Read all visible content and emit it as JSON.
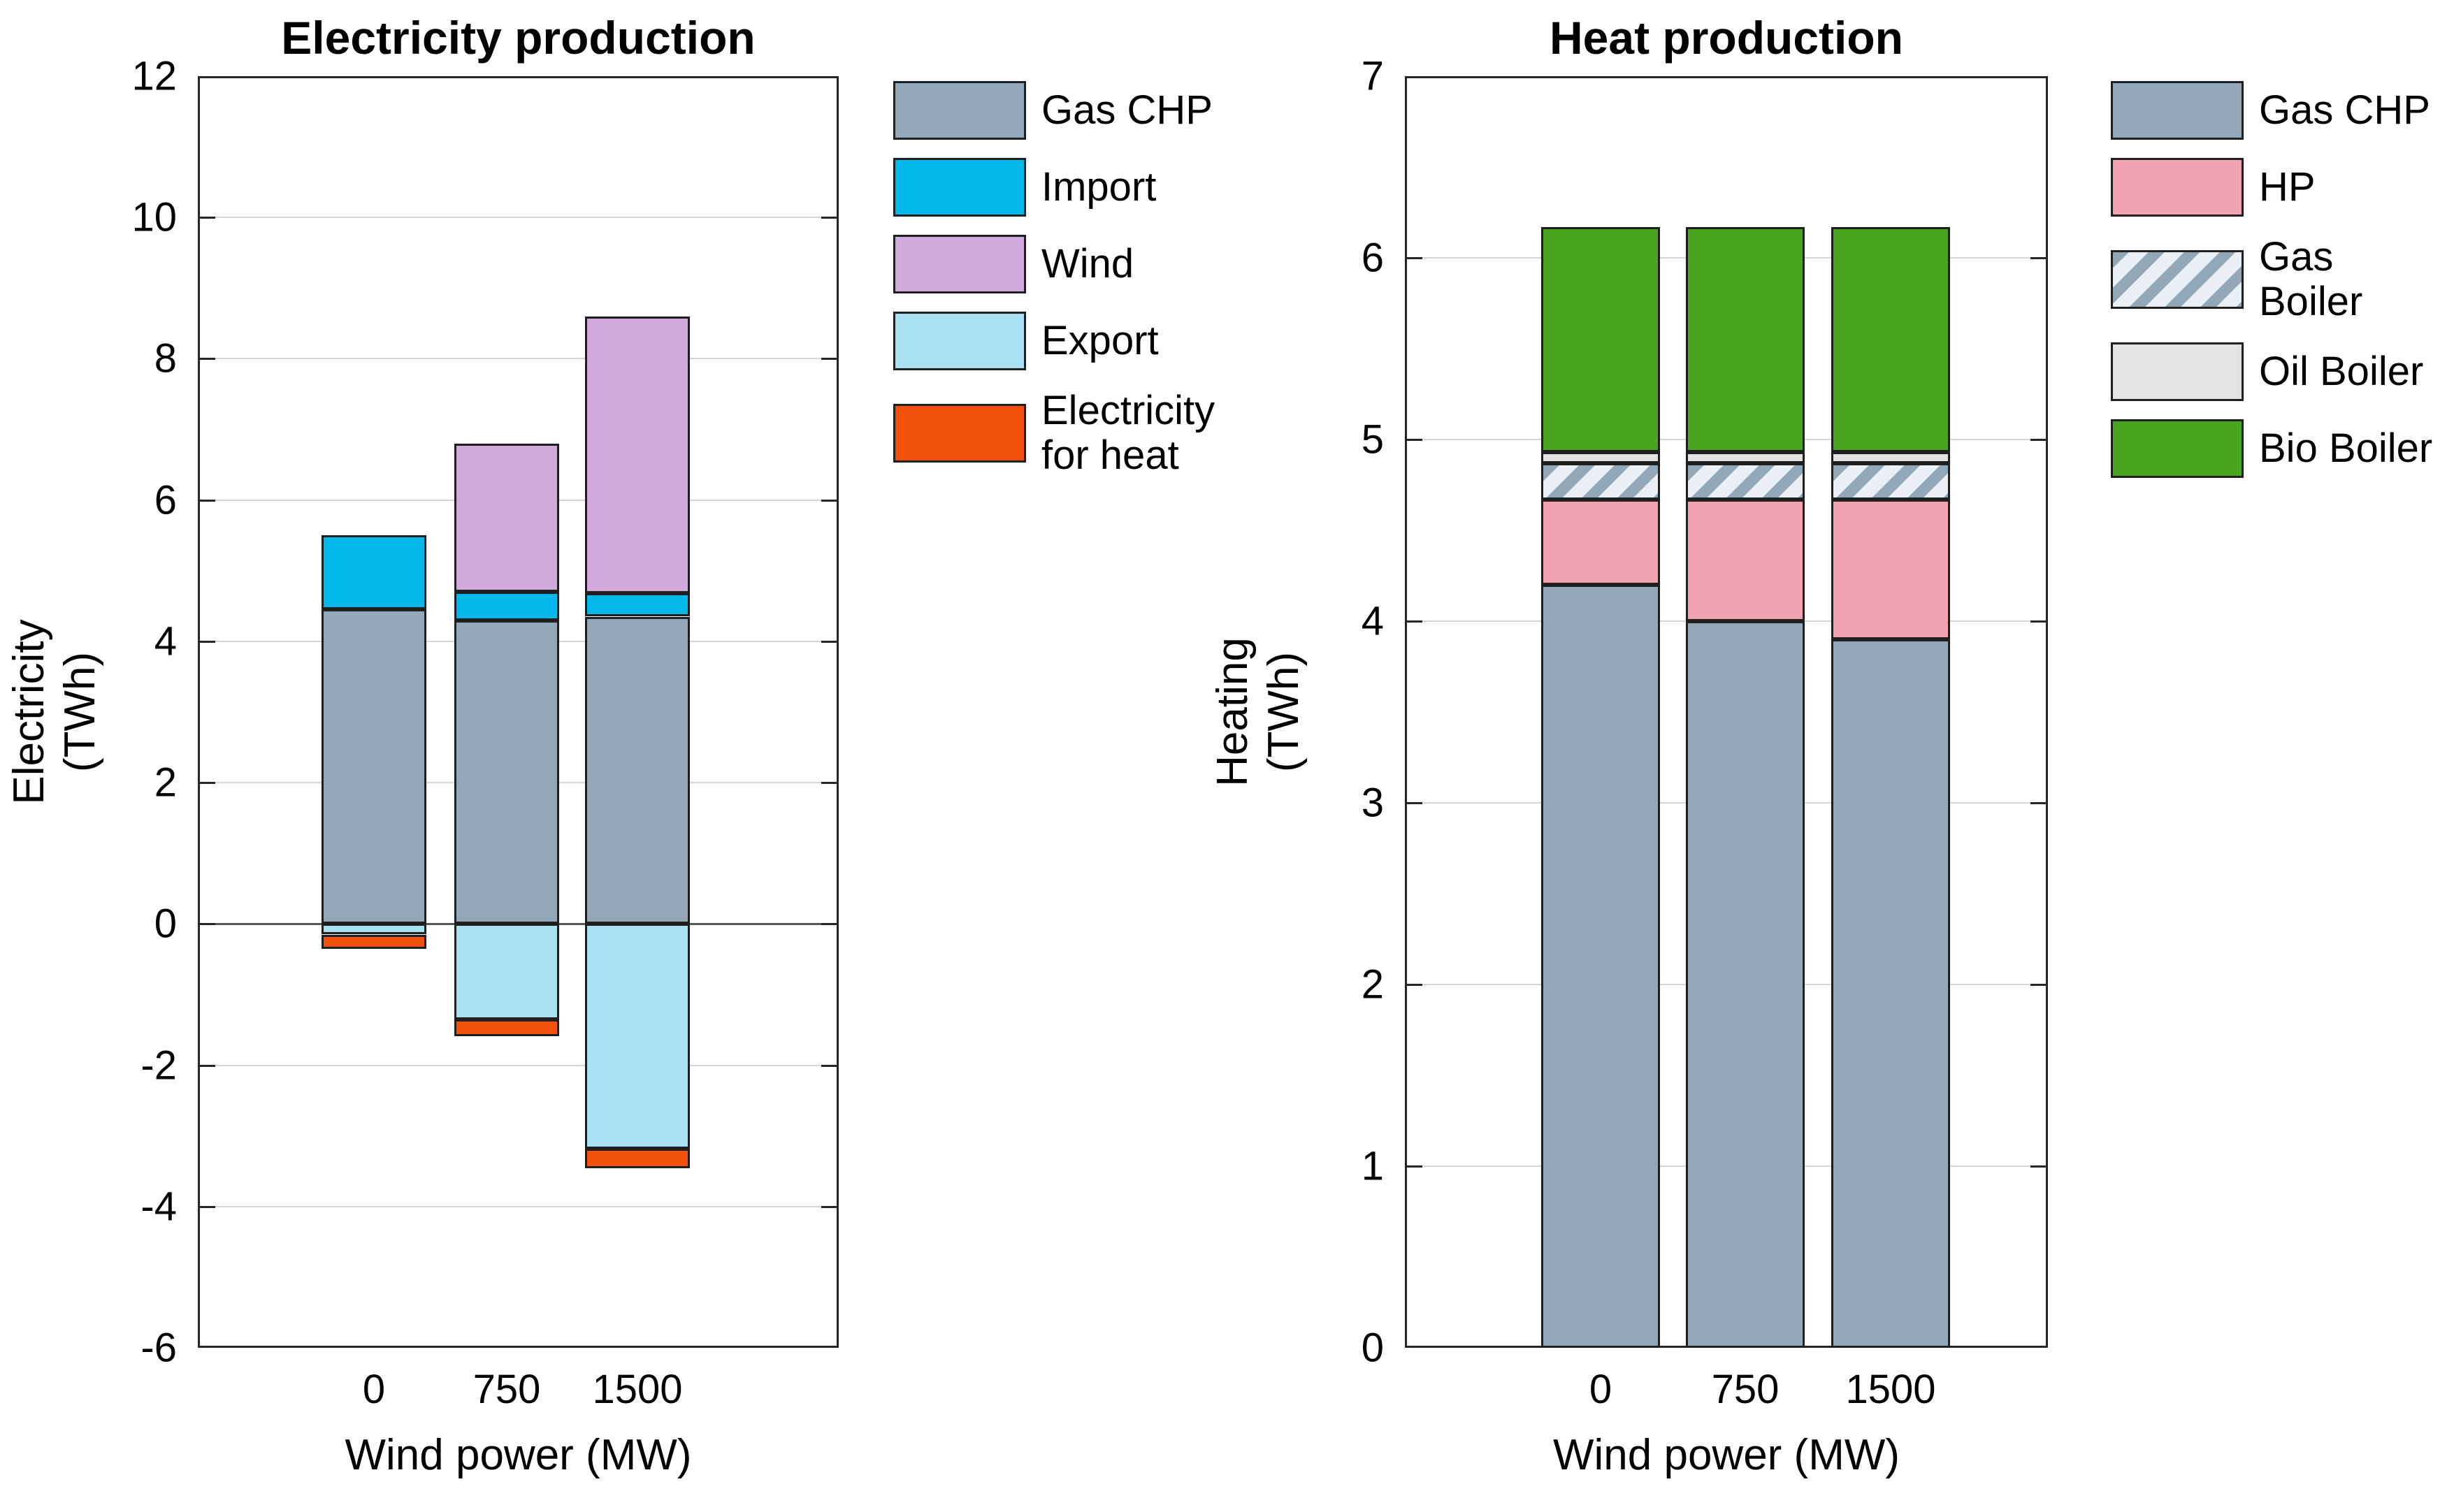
{
  "figure": {
    "background": "#ffffff",
    "grid_color": "#d6d6d6",
    "zero_line_color": "#595959",
    "bar_edge_color": "#1f1f1f",
    "hatch_light_color": "#e9eff4"
  },
  "chart_data": [
    {
      "type": "bar",
      "stacked": true,
      "title": "Electricity production",
      "ylabel": "Electricity (TWh)",
      "ylabel_lines": [
        "Electricity",
        "(TWh)"
      ],
      "xlabel": "Wind power (MW)",
      "categories": [
        "0",
        "750",
        "1500"
      ],
      "ylim": [
        -6,
        12
      ],
      "yticks": [
        -6,
        -4,
        -2,
        0,
        2,
        4,
        6,
        8,
        10,
        12
      ],
      "grid": true,
      "legend_position": "right-outside",
      "series": [
        {
          "name": "Gas CHP",
          "color": "#92a7b7",
          "values": [
            4.45,
            4.3,
            4.35
          ]
        },
        {
          "name": "Import",
          "color": "#00b7ea",
          "values": [
            1.05,
            0.4,
            0.33
          ]
        },
        {
          "name": "Wind",
          "color": "#d0abdb",
          "values": [
            0,
            2.1,
            3.92
          ]
        },
        {
          "name": "Export",
          "color": "#a9e0f2",
          "values": [
            -0.15,
            -1.35,
            -3.18
          ]
        },
        {
          "name": "Electricity for heat",
          "color": "#f2510b",
          "values": [
            -0.2,
            -0.24,
            -0.28
          ]
        }
      ]
    },
    {
      "type": "bar",
      "stacked": true,
      "title": "Heat production",
      "ylabel": "Heating (TWh)",
      "ylabel_lines": [
        "Heating",
        "(TWh)"
      ],
      "xlabel": "Wind power (MW)",
      "categories": [
        "0",
        "750",
        "1500"
      ],
      "ylim": [
        0,
        7
      ],
      "yticks": [
        0,
        1,
        2,
        3,
        4,
        5,
        6,
        7
      ],
      "grid": true,
      "legend_position": "right-outside",
      "series": [
        {
          "name": "Gas CHP",
          "color": "#92a7b7",
          "values": [
            4.2,
            4.0,
            3.9
          ]
        },
        {
          "name": "HP",
          "color": "#f0a3b3",
          "values": [
            0.47,
            0.67,
            0.77
          ]
        },
        {
          "name": "Gas Boiler",
          "color": "#92a7b7",
          "hatch": true,
          "values": [
            0.2,
            0.2,
            0.2
          ]
        },
        {
          "name": "Oil Boiler",
          "color": "#e3e3e3",
          "values": [
            0.06,
            0.06,
            0.06
          ]
        },
        {
          "name": "Bio Boiler",
          "color": "#4aa41e",
          "values": [
            1.24,
            1.24,
            1.24
          ]
        }
      ]
    }
  ]
}
